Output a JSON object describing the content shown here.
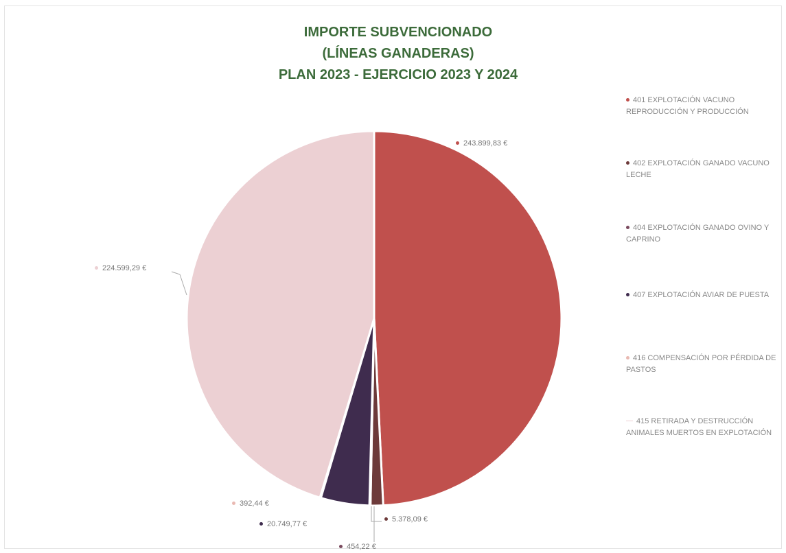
{
  "chart_data": {
    "type": "pie",
    "title": [
      "IMPORTE SUBVENCIONADO",
      "(LÍNEAS GANADERAS)",
      "PLAN 2023 - EJERCICIO 2023 Y 2024"
    ],
    "slices": [
      {
        "name": "401 EXPLOTACIÓN VACUNO REPRODUCCIÓN Y PRODUCCIÓN",
        "value": 243899.83,
        "label": "243.899,83 €",
        "color": "#c0504d",
        "mark": "dot"
      },
      {
        "name": "402 EXPLOTACIÓN GANADO VACUNO LECHE",
        "value": 5378.09,
        "label": "5.378,09 €",
        "color": "#6d3a3a",
        "mark": "dot"
      },
      {
        "name": "404 EXPLOTACIÓN GANADO OVINO Y CAPRINO",
        "value": 454.22,
        "label": "454,22 €",
        "color": "#7a4a5e",
        "mark": "dot"
      },
      {
        "name": "407 EXPLOTACIÓN AVIAR DE PUESTA",
        "value": 20749.77,
        "label": "20.749,77 €",
        "color": "#3f2c4e",
        "mark": "dot"
      },
      {
        "name": "416 COMPENSACIÓN POR PÉRDIDA DE PASTOS",
        "value": 392.44,
        "label": "392,44 €",
        "color": "#e9b9b2",
        "mark": "dot"
      },
      {
        "name": "415 RETIRADA Y DESTRUCCIÓN ANIMALES MUERTOS EN EXPLOTACIÓN",
        "value": 224599.29,
        "label": "224.599,29 €",
        "color": "#ecd0d3",
        "mark": "line"
      }
    ],
    "legend_position": "right"
  }
}
